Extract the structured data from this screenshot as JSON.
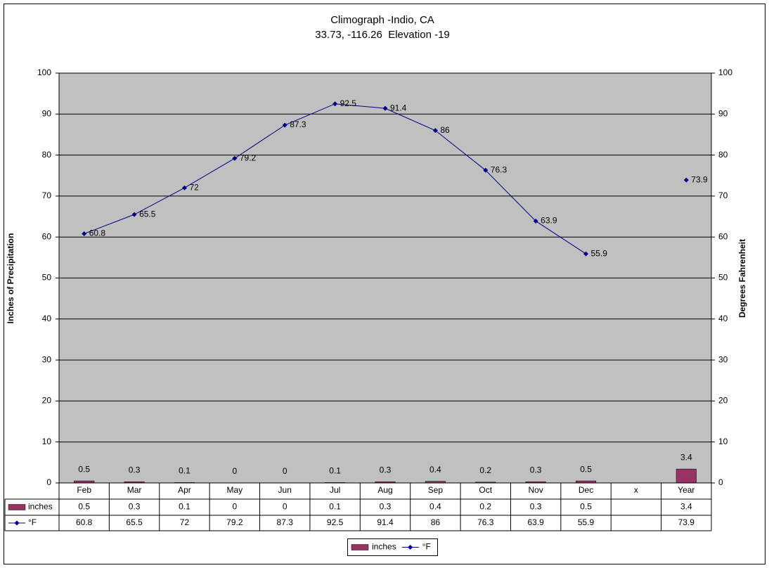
{
  "chart_data": {
    "type": "combo",
    "title": "Climograph -Indio, CA",
    "subtitle": "33.73, -116.26  Elevation -19",
    "y_label": "Inches of Precipitation",
    "y2_label": "Degrees Fahrenheit",
    "categories": [
      "Feb",
      "Mar",
      "Apr",
      "May",
      "Jun",
      "Jul",
      "Aug",
      "Sep",
      "Oct",
      "Nov",
      "Dec",
      "x",
      "Year"
    ],
    "series": [
      {
        "name": "inches",
        "type": "bar",
        "color": "#993366",
        "values": [
          0.5,
          0.3,
          0.1,
          0,
          0,
          0.1,
          0.3,
          0.4,
          0.2,
          0.3,
          0.5,
          null,
          3.4
        ]
      },
      {
        "name": "°F",
        "type": "line",
        "axis": "y2",
        "color": "#000080",
        "values": [
          60.8,
          65.5,
          72,
          79.2,
          87.3,
          92.5,
          91.4,
          86,
          76.3,
          63.9,
          55.9,
          null,
          73.9
        ]
      }
    ],
    "ylim": [
      0,
      100
    ],
    "yticks": [
      0,
      10,
      20,
      30,
      40,
      50,
      60,
      70,
      80,
      90,
      100
    ],
    "y2lim": [
      0,
      100
    ],
    "y2ticks": [
      0,
      10,
      20,
      30,
      40,
      50,
      60,
      70,
      80,
      90,
      100
    ],
    "grid": true,
    "data_table": true,
    "legend": "bottom"
  }
}
